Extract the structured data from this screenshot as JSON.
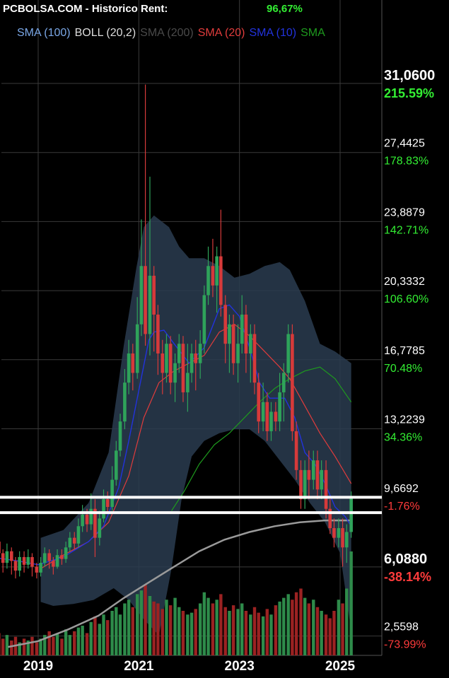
{
  "header": {
    "title": "PCBOLSA.COM - Historico  Rent:",
    "return_value": "96,67%"
  },
  "legend": [
    {
      "label": "SMA (100)",
      "color": "#7aa7e6"
    },
    {
      "label": "BOLL (20,2)",
      "color": "#dddddd"
    },
    {
      "label": "SMA (200)",
      "color": "#4a4a4a"
    },
    {
      "label": "SMA (20)",
      "color": "#e03c3c"
    },
    {
      "label": "SMA (10)",
      "color": "#2233dd"
    },
    {
      "label": "SMA",
      "color": "#1e9a1e"
    }
  ],
  "chart_data": {
    "type": "candlestick",
    "x_ticks": [
      "2019",
      "2021",
      "2023",
      "2025"
    ],
    "y_ticks": [
      {
        "price": "31,0600",
        "pct": "215.59%",
        "bold": true,
        "pct_color": "#33ee33"
      },
      {
        "price": "27,4425",
        "pct": "178.83%",
        "bold": false,
        "pct_color": "#33ee33"
      },
      {
        "price": "23,8879",
        "pct": "142.71%",
        "bold": false,
        "pct_color": "#33ee33"
      },
      {
        "price": "20,3332",
        "pct": "106.60%",
        "bold": false,
        "pct_color": "#33ee33"
      },
      {
        "price": "16,7785",
        "pct": "70.48%",
        "bold": false,
        "pct_color": "#33ee33"
      },
      {
        "price": "13,2239",
        "pct": "34.36%",
        "bold": false,
        "pct_color": "#33ee33"
      },
      {
        "price": "9,6692",
        "pct": "-1.76%",
        "bold": false,
        "pct_color": "#ff3b3b"
      },
      {
        "price": "6,0880",
        "pct": "-38.14%",
        "bold": true,
        "pct_color": "#ff3b3b"
      },
      {
        "price": "2,5598",
        "pct": "-73.99%",
        "bold": false,
        "pct_color": "#ff3b3b"
      }
    ],
    "y_range": [
      2.0,
      31.06
    ],
    "horizontal_levels": [
      9.7,
      8.9
    ],
    "x_range": [
      2018.0,
      2025.6
    ],
    "candles": [
      [
        2018.05,
        7.3,
        6.9,
        7.8,
        6.2
      ],
      [
        2018.13,
        6.9,
        7.4,
        7.9,
        6.4
      ],
      [
        2018.22,
        7.4,
        6.8,
        7.6,
        6.1
      ],
      [
        2018.3,
        6.8,
        6.3,
        7.0,
        5.8
      ],
      [
        2018.38,
        6.3,
        6.9,
        7.3,
        6.0
      ],
      [
        2018.47,
        6.9,
        6.4,
        7.1,
        5.7
      ],
      [
        2018.55,
        6.4,
        5.9,
        6.6,
        5.5
      ],
      [
        2018.63,
        5.9,
        6.6,
        6.9,
        5.6
      ],
      [
        2018.72,
        6.6,
        6.2,
        6.9,
        5.8
      ],
      [
        2018.8,
        6.2,
        6.6,
        7.0,
        6.0
      ],
      [
        2018.88,
        6.6,
        6.1,
        6.8,
        5.6
      ],
      [
        2018.97,
        6.1,
        5.8,
        6.3,
        5.5
      ],
      [
        2019.05,
        5.8,
        6.3,
        6.6,
        5.6
      ],
      [
        2019.13,
        6.3,
        6.8,
        7.1,
        6.1
      ],
      [
        2019.22,
        6.8,
        6.4,
        7.0,
        6.0
      ],
      [
        2019.3,
        6.4,
        6.1,
        6.6,
        5.7
      ],
      [
        2019.38,
        6.1,
        6.7,
        7.0,
        6.0
      ],
      [
        2019.47,
        6.7,
        6.5,
        7.0,
        6.2
      ],
      [
        2019.55,
        6.5,
        7.1,
        7.4,
        6.3
      ],
      [
        2019.63,
        7.1,
        7.6,
        7.9,
        6.9
      ],
      [
        2019.72,
        7.6,
        7.3,
        7.9,
        7.0
      ],
      [
        2019.8,
        7.3,
        8.2,
        8.6,
        7.1
      ],
      [
        2019.88,
        8.2,
        8.8,
        9.3,
        7.9
      ],
      [
        2019.97,
        8.8,
        8.3,
        9.1,
        7.9
      ],
      [
        2020.05,
        8.3,
        9.1,
        9.9,
        8.0
      ],
      [
        2020.13,
        9.1,
        7.6,
        9.6,
        6.6
      ],
      [
        2020.22,
        7.6,
        8.6,
        9.0,
        7.2
      ],
      [
        2020.3,
        8.6,
        9.6,
        10.1,
        8.4
      ],
      [
        2020.38,
        9.6,
        9.2,
        10.0,
        8.9
      ],
      [
        2020.47,
        9.2,
        10.6,
        11.3,
        9.0
      ],
      [
        2020.55,
        10.6,
        12.1,
        12.6,
        10.3
      ],
      [
        2020.63,
        12.1,
        13.6,
        14.0,
        11.8
      ],
      [
        2020.72,
        13.6,
        15.6,
        16.3,
        13.2
      ],
      [
        2020.8,
        15.6,
        17.1,
        17.8,
        15.0
      ],
      [
        2020.88,
        17.1,
        16.1,
        17.6,
        15.2
      ],
      [
        2020.97,
        16.1,
        18.6,
        20.0,
        15.8
      ],
      [
        2021.05,
        18.6,
        21.6,
        24.0,
        18.0
      ],
      [
        2021.13,
        21.6,
        18.1,
        31.0,
        17.5
      ],
      [
        2021.22,
        18.1,
        21.1,
        26.2,
        17.0
      ],
      [
        2021.3,
        21.1,
        19.1,
        21.6,
        17.2
      ],
      [
        2021.38,
        19.1,
        17.1,
        19.6,
        16.0
      ],
      [
        2021.47,
        17.1,
        16.1,
        17.8,
        15.0
      ],
      [
        2021.55,
        16.1,
        17.6,
        18.1,
        15.6
      ],
      [
        2021.63,
        17.6,
        15.6,
        18.0,
        15.0
      ],
      [
        2021.72,
        15.6,
        16.6,
        17.1,
        14.6
      ],
      [
        2021.8,
        16.6,
        17.6,
        18.1,
        16.1
      ],
      [
        2021.88,
        17.6,
        15.1,
        18.0,
        14.6
      ],
      [
        2021.97,
        15.1,
        16.1,
        17.6,
        14.1
      ],
      [
        2022.05,
        16.1,
        17.1,
        17.6,
        15.6
      ],
      [
        2022.13,
        17.1,
        16.6,
        17.8,
        15.2
      ],
      [
        2022.22,
        16.6,
        17.6,
        18.3,
        15.8
      ],
      [
        2022.3,
        17.6,
        20.1,
        20.6,
        17.1
      ],
      [
        2022.38,
        20.1,
        21.6,
        22.6,
        19.6
      ],
      [
        2022.47,
        21.6,
        20.6,
        23.0,
        20.0
      ],
      [
        2022.55,
        20.6,
        22.1,
        22.6,
        19.2
      ],
      [
        2022.63,
        22.1,
        19.6,
        24.5,
        19.0
      ],
      [
        2022.72,
        19.6,
        17.6,
        20.1,
        16.6
      ],
      [
        2022.8,
        17.6,
        18.6,
        19.1,
        16.1
      ],
      [
        2022.88,
        18.6,
        16.6,
        19.1,
        16.0
      ],
      [
        2022.97,
        16.6,
        17.6,
        18.6,
        15.6
      ],
      [
        2023.05,
        17.6,
        19.1,
        20.1,
        17.1
      ],
      [
        2023.13,
        19.1,
        17.1,
        19.6,
        16.1
      ],
      [
        2023.22,
        17.1,
        18.1,
        18.6,
        15.6
      ],
      [
        2023.3,
        18.1,
        15.6,
        18.6,
        15.0
      ],
      [
        2023.38,
        15.6,
        13.6,
        16.1,
        13.0
      ],
      [
        2023.47,
        13.6,
        14.6,
        15.6,
        13.1
      ],
      [
        2023.55,
        14.6,
        13.1,
        15.1,
        12.6
      ],
      [
        2023.63,
        13.1,
        14.1,
        14.6,
        12.6
      ],
      [
        2023.72,
        14.1,
        13.6,
        14.6,
        13.1
      ],
      [
        2023.8,
        13.6,
        15.1,
        16.1,
        13.1
      ],
      [
        2023.88,
        15.1,
        16.1,
        16.6,
        13.6
      ],
      [
        2023.97,
        16.1,
        18.1,
        18.6,
        15.6
      ],
      [
        2024.05,
        18.1,
        13.1,
        18.6,
        12.6
      ],
      [
        2024.13,
        13.1,
        11.1,
        13.6,
        10.6
      ],
      [
        2024.22,
        11.1,
        9.6,
        11.6,
        9.1
      ],
      [
        2024.3,
        9.6,
        11.1,
        11.6,
        9.1
      ],
      [
        2024.38,
        11.1,
        10.6,
        12.1,
        9.6
      ],
      [
        2024.47,
        10.6,
        11.6,
        12.1,
        10.1
      ],
      [
        2024.55,
        11.6,
        10.1,
        12.1,
        9.6
      ],
      [
        2024.63,
        10.1,
        11.1,
        11.6,
        9.6
      ],
      [
        2024.72,
        11.1,
        9.1,
        11.6,
        8.6
      ],
      [
        2024.8,
        9.1,
        8.1,
        9.6,
        7.8
      ],
      [
        2024.88,
        8.1,
        7.6,
        8.6,
        7.1
      ],
      [
        2024.97,
        7.6,
        8.1,
        8.6,
        7.1
      ],
      [
        2025.05,
        8.1,
        7.1,
        8.6,
        6.1
      ],
      [
        2025.13,
        7.1,
        7.9,
        8.3,
        6.3
      ],
      [
        2025.22,
        7.9,
        9.7,
        10.0,
        7.6
      ]
    ],
    "sma10": [
      [
        2018.05,
        6.6
      ],
      [
        2018.6,
        6.4
      ],
      [
        2019.0,
        6.2
      ],
      [
        2019.5,
        6.6
      ],
      [
        2020.0,
        7.4
      ],
      [
        2020.3,
        8.2
      ],
      [
        2020.6,
        10.2
      ],
      [
        2020.8,
        12.6
      ],
      [
        2021.0,
        15.2
      ],
      [
        2021.2,
        17.8
      ],
      [
        2021.3,
        18.2
      ],
      [
        2021.5,
        18.3
      ],
      [
        2021.7,
        17.6
      ],
      [
        2022.0,
        16.6
      ],
      [
        2022.3,
        17.4
      ],
      [
        2022.6,
        19.4
      ],
      [
        2022.8,
        19.6
      ],
      [
        2023.0,
        19.0
      ],
      [
        2023.2,
        17.4
      ],
      [
        2023.4,
        15.6
      ],
      [
        2023.6,
        14.8
      ],
      [
        2023.9,
        14.8
      ],
      [
        2024.1,
        13.8
      ],
      [
        2024.3,
        12.0
      ],
      [
        2024.5,
        11.4
      ],
      [
        2024.7,
        10.4
      ],
      [
        2024.9,
        9.2
      ],
      [
        2025.1,
        8.7
      ],
      [
        2025.22,
        8.2
      ]
    ],
    "sma20": [
      [
        2019.05,
        6.0
      ],
      [
        2019.5,
        6.7
      ],
      [
        2020.0,
        7.4
      ],
      [
        2020.4,
        8.4
      ],
      [
        2020.8,
        10.8
      ],
      [
        2021.1,
        13.8
      ],
      [
        2021.4,
        15.6
      ],
      [
        2021.7,
        16.2
      ],
      [
        2022.0,
        16.6
      ],
      [
        2022.3,
        17.0
      ],
      [
        2022.6,
        18.2
      ],
      [
        2022.9,
        18.6
      ],
      [
        2023.2,
        18.0
      ],
      [
        2023.5,
        17.2
      ],
      [
        2023.8,
        16.4
      ],
      [
        2024.0,
        15.8
      ],
      [
        2024.3,
        14.4
      ],
      [
        2024.6,
        13.0
      ],
      [
        2024.9,
        11.8
      ],
      [
        2025.22,
        10.4
      ]
    ],
    "sma100": [
      [
        2021.65,
        9.0
      ],
      [
        2021.9,
        10.0
      ],
      [
        2022.2,
        11.4
      ],
      [
        2022.5,
        12.4
      ],
      [
        2022.8,
        13.0
      ],
      [
        2023.1,
        13.8
      ],
      [
        2023.4,
        14.6
      ],
      [
        2023.7,
        15.3
      ],
      [
        2024.0,
        15.8
      ],
      [
        2024.3,
        16.2
      ],
      [
        2024.6,
        16.4
      ],
      [
        2024.9,
        15.8
      ],
      [
        2025.22,
        14.6
      ]
    ],
    "sma200": [
      [
        2018.4,
        2.0
      ],
      [
        2019.0,
        2.3
      ],
      [
        2019.6,
        2.9
      ],
      [
        2020.2,
        3.6
      ],
      [
        2020.7,
        4.5
      ],
      [
        2021.2,
        5.3
      ],
      [
        2021.7,
        6.1
      ],
      [
        2022.2,
        6.9
      ],
      [
        2022.7,
        7.5
      ],
      [
        2023.2,
        7.9
      ],
      [
        2023.7,
        8.2
      ],
      [
        2024.2,
        8.4
      ],
      [
        2024.7,
        8.5
      ],
      [
        2025.22,
        8.5
      ]
    ],
    "boll_upper": [
      [
        2019.05,
        7.6
      ],
      [
        2019.5,
        8.0
      ],
      [
        2020.0,
        9.4
      ],
      [
        2020.4,
        12.0
      ],
      [
        2020.7,
        17.5
      ],
      [
        2020.95,
        21.5
      ],
      [
        2021.1,
        23.6
      ],
      [
        2021.3,
        24.2
      ],
      [
        2021.6,
        23.6
      ],
      [
        2021.8,
        22.6
      ],
      [
        2022.0,
        22.0
      ],
      [
        2022.3,
        22.0
      ],
      [
        2022.6,
        21.6
      ],
      [
        2022.9,
        21.0
      ],
      [
        2023.2,
        21.2
      ],
      [
        2023.5,
        21.6
      ],
      [
        2023.8,
        21.8
      ],
      [
        2024.0,
        21.4
      ],
      [
        2024.3,
        19.8
      ],
      [
        2024.6,
        17.6
      ],
      [
        2024.9,
        17.2
      ],
      [
        2025.22,
        16.6
      ]
    ],
    "boll_lower": [
      [
        2025.22,
        2.8
      ],
      [
        2025.0,
        6.8
      ],
      [
        2024.7,
        8.4
      ],
      [
        2024.4,
        9.4
      ],
      [
        2024.1,
        10.6
      ],
      [
        2023.8,
        11.6
      ],
      [
        2023.5,
        12.6
      ],
      [
        2023.2,
        13.2
      ],
      [
        2022.9,
        13.2
      ],
      [
        2022.6,
        13.0
      ],
      [
        2022.3,
        12.6
      ],
      [
        2022.05,
        11.8
      ],
      [
        2021.85,
        9.6
      ],
      [
        2021.65,
        6.0
      ],
      [
        2021.4,
        2.6
      ],
      [
        2021.1,
        3.4
      ],
      [
        2020.8,
        4.4
      ],
      [
        2020.5,
        5.0
      ],
      [
        2020.1,
        4.4
      ],
      [
        2019.7,
        4.2
      ],
      [
        2019.3,
        4.1
      ],
      [
        2019.05,
        4.3
      ]
    ],
    "volume": [
      0.14,
      0.1,
      0.12,
      0.09,
      0.11,
      0.08,
      0.1,
      0.07,
      0.09,
      0.08,
      0.1,
      0.07,
      0.09,
      0.11,
      0.13,
      0.1,
      0.12,
      0.09,
      0.14,
      0.11,
      0.13,
      0.15,
      0.16,
      0.12,
      0.18,
      0.21,
      0.17,
      0.22,
      0.19,
      0.24,
      0.26,
      0.22,
      0.28,
      0.3,
      0.26,
      0.33,
      0.35,
      0.38,
      0.32,
      0.29,
      0.28,
      0.25,
      0.3,
      0.27,
      0.31,
      0.26,
      0.24,
      0.22,
      0.23,
      0.25,
      0.28,
      0.34,
      0.31,
      0.28,
      0.3,
      0.33,
      0.26,
      0.24,
      0.27,
      0.25,
      0.28,
      0.24,
      0.22,
      0.26,
      0.23,
      0.21,
      0.25,
      0.22,
      0.27,
      0.29,
      0.31,
      0.33,
      0.3,
      0.34,
      0.36,
      0.31,
      0.28,
      0.3,
      0.26,
      0.24,
      0.22,
      0.2,
      0.24,
      0.3,
      0.28,
      0.36,
      0.56
    ]
  }
}
